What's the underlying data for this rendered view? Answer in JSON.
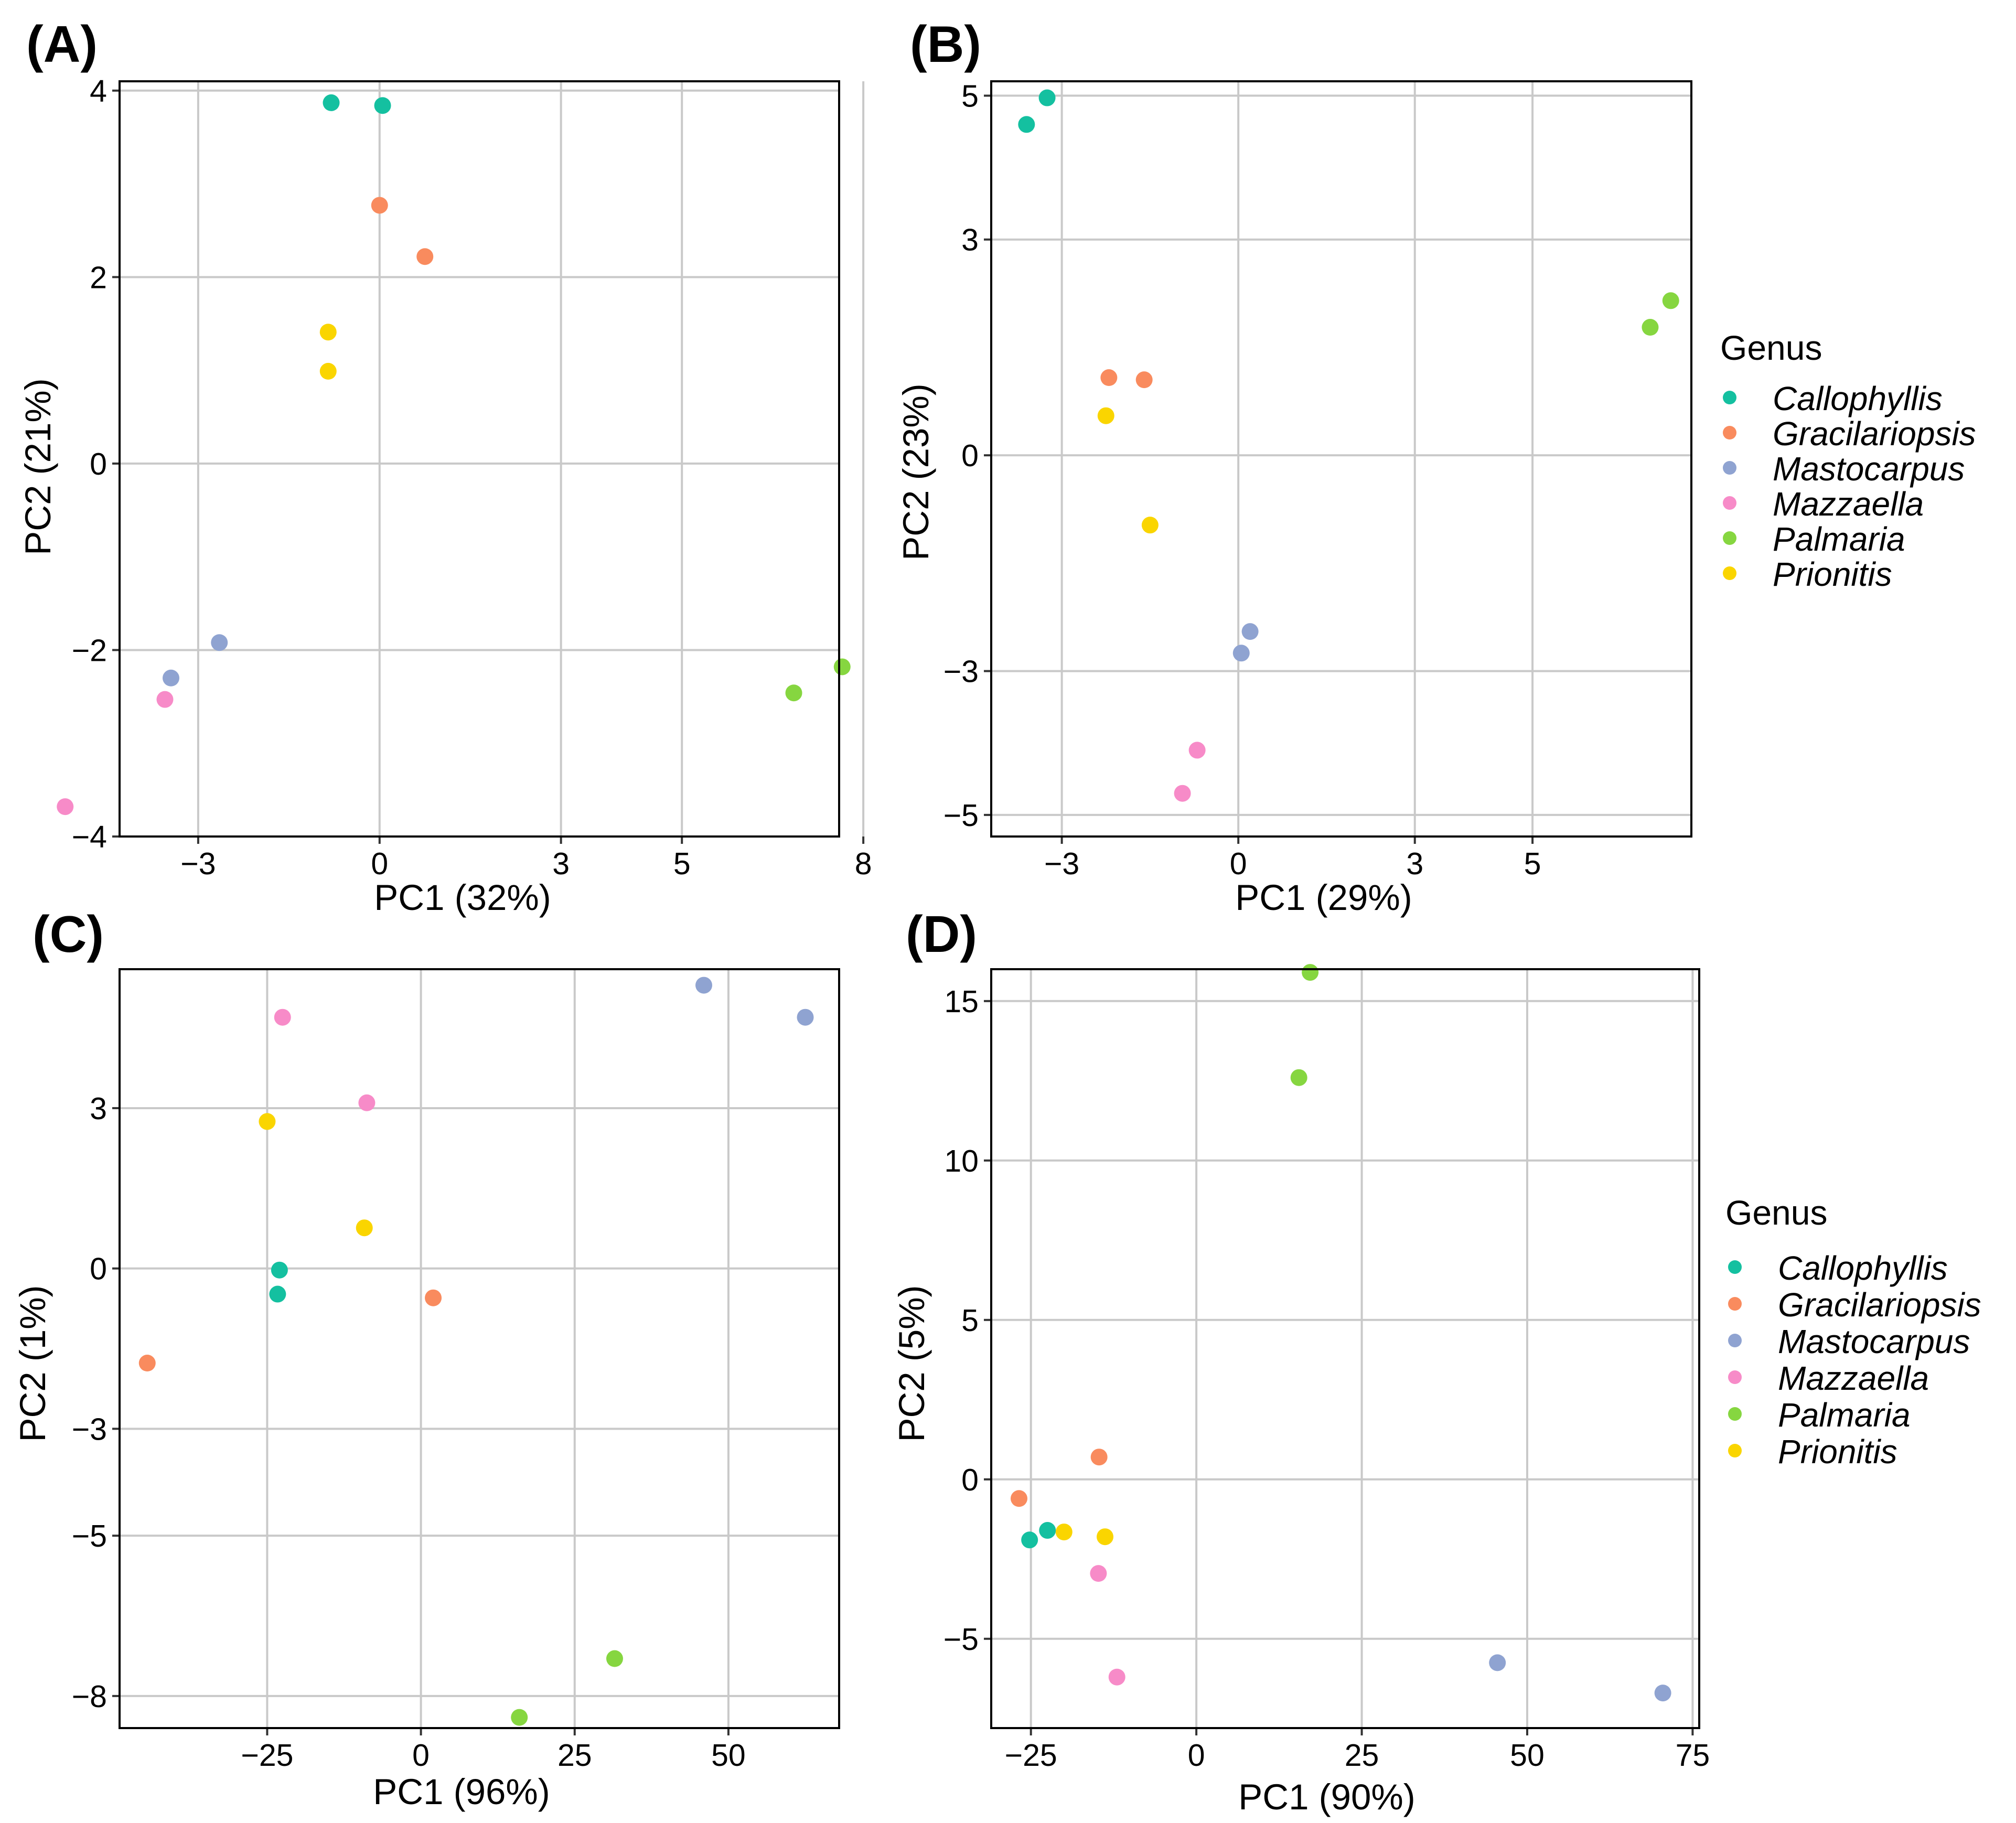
{
  "genus_colors": {
    "Callophyllis": "#14c0a0",
    "Gracilariopsis": "#f98b5e",
    "Mastocarpus": "#8fa3d1",
    "Mazzaella": "#f78bc8",
    "Palmaria": "#86d640",
    "Prionitis": "#fad500"
  },
  "legends": [
    {
      "title": "Genus",
      "items": [
        "Callophyllis",
        "Gracilariopsis",
        "Mastocarpus",
        "Mazzaella",
        "Palmaria",
        "Prionitis"
      ]
    },
    {
      "title": "Genus",
      "items": [
        "Callophyllis",
        "Gracilariopsis",
        "Mastocarpus",
        "Mazzaella",
        "Palmaria",
        "Prionitis"
      ]
    }
  ],
  "chart_data": [
    {
      "type": "scatter",
      "label": "(A)",
      "xlabel": "PC1 (32%)",
      "ylabel": "PC2 (21%)",
      "xlim": [
        -4.3,
        7.6
      ],
      "ylim": [
        -4.0,
        4.1
      ],
      "xticks": [
        -3,
        0,
        3,
        5,
        8
      ],
      "xtick_labels": [
        "−3",
        "0",
        "3",
        "5",
        "8"
      ],
      "yticks": [
        4,
        2,
        0,
        -2,
        -4
      ],
      "ytick_labels": [
        "4",
        "2",
        "0",
        "−2",
        "−4"
      ],
      "grid": true,
      "points": [
        {
          "genus": "Callophyllis",
          "x": -0.8,
          "y": 3.87
        },
        {
          "genus": "Callophyllis",
          "x": 0.05,
          "y": 3.84
        },
        {
          "genus": "Gracilariopsis",
          "x": 0.0,
          "y": 2.77
        },
        {
          "genus": "Gracilariopsis",
          "x": 0.75,
          "y": 2.22
        },
        {
          "genus": "Prionitis",
          "x": -0.85,
          "y": 1.41
        },
        {
          "genus": "Prionitis",
          "x": -0.85,
          "y": 0.99
        },
        {
          "genus": "Mastocarpus",
          "x": -2.65,
          "y": -1.92
        },
        {
          "genus": "Mastocarpus",
          "x": -3.45,
          "y": -2.3
        },
        {
          "genus": "Mazzaella",
          "x": -3.55,
          "y": -2.53
        },
        {
          "genus": "Mazzaella",
          "x": -5.2,
          "y": -3.68
        },
        {
          "genus": "Palmaria",
          "x": 6.85,
          "y": -2.46
        },
        {
          "genus": "Palmaria",
          "x": 7.65,
          "y": -2.18
        }
      ]
    },
    {
      "type": "scatter",
      "label": "(B)",
      "xlabel": "PC1 (29%)",
      "ylabel": "PC2 (23%)",
      "xlim": [
        -4.2,
        7.7
      ],
      "ylim": [
        -5.3,
        5.2
      ],
      "xticks": [
        -3,
        0,
        3,
        5
      ],
      "xtick_labels": [
        "−3",
        "0",
        "3",
        "5"
      ],
      "yticks": [
        5,
        3,
        0,
        -3,
        -5
      ],
      "ytick_labels": [
        "5",
        "3",
        "0",
        "−3",
        "−5"
      ],
      "grid": true,
      "points": [
        {
          "genus": "Callophyllis",
          "x": -3.25,
          "y": 4.97
        },
        {
          "genus": "Callophyllis",
          "x": -3.6,
          "y": 4.6
        },
        {
          "genus": "Palmaria",
          "x": 7.35,
          "y": 2.15
        },
        {
          "genus": "Palmaria",
          "x": 7.0,
          "y": 1.78
        },
        {
          "genus": "Gracilariopsis",
          "x": -2.2,
          "y": 1.08
        },
        {
          "genus": "Gracilariopsis",
          "x": -1.6,
          "y": 1.05
        },
        {
          "genus": "Prionitis",
          "x": -2.25,
          "y": 0.55
        },
        {
          "genus": "Prionitis",
          "x": -1.5,
          "y": -0.97
        },
        {
          "genus": "Mastocarpus",
          "x": 0.2,
          "y": -2.45
        },
        {
          "genus": "Mastocarpus",
          "x": 0.05,
          "y": -2.75
        },
        {
          "genus": "Mazzaella",
          "x": -0.7,
          "y": -4.1
        },
        {
          "genus": "Mazzaella",
          "x": -0.95,
          "y": -4.7
        }
      ]
    },
    {
      "type": "scatter",
      "label": "(C)",
      "xlabel": "PC1 (96%)",
      "ylabel": "PC2 (1%)",
      "xlim": [
        -49,
        68
      ],
      "ylim": [
        -8.6,
        5.6
      ],
      "xticks": [
        -25,
        0,
        25,
        50
      ],
      "xtick_labels": [
        "−25",
        "0",
        "25",
        "50"
      ],
      "yticks": [
        3,
        0,
        -3,
        -5,
        -8
      ],
      "ytick_labels": [
        "3",
        "0",
        "−3",
        "−5",
        "−8"
      ],
      "grid": true,
      "points": [
        {
          "genus": "Mastocarpus",
          "x": 46,
          "y": 5.3
        },
        {
          "genus": "Mastocarpus",
          "x": 62.5,
          "y": 4.7
        },
        {
          "genus": "Mazzaella",
          "x": -22.5,
          "y": 4.7
        },
        {
          "genus": "Mazzaella",
          "x": -8.8,
          "y": 3.1
        },
        {
          "genus": "Prionitis",
          "x": -25,
          "y": 2.75
        },
        {
          "genus": "Prionitis",
          "x": -9.2,
          "y": 0.76
        },
        {
          "genus": "Callophyllis",
          "x": -23,
          "y": -0.03
        },
        {
          "genus": "Callophyllis",
          "x": -23.3,
          "y": -0.48
        },
        {
          "genus": "Gracilariopsis",
          "x": 2,
          "y": -0.55
        },
        {
          "genus": "Gracilariopsis",
          "x": -44.5,
          "y": -1.77
        },
        {
          "genus": "Palmaria",
          "x": 31.5,
          "y": -7.3
        },
        {
          "genus": "Palmaria",
          "x": 16,
          "y": -8.4
        }
      ]
    },
    {
      "type": "scatter",
      "label": "(D)",
      "xlabel": "PC1 (90%)",
      "ylabel": "PC2 (5%)",
      "xlim": [
        -31,
        76
      ],
      "ylim": [
        -7.8,
        16.0
      ],
      "xticks": [
        -25,
        0,
        25,
        50,
        75
      ],
      "xtick_labels": [
        "−25",
        "0",
        "25",
        "50",
        "75"
      ],
      "yticks": [
        15,
        10,
        5,
        0,
        -5
      ],
      "ytick_labels": [
        "15",
        "10",
        "5",
        "0",
        "−5"
      ],
      "grid": true,
      "points": [
        {
          "genus": "Palmaria",
          "x": 17.2,
          "y": 15.9
        },
        {
          "genus": "Palmaria",
          "x": 15.5,
          "y": 12.6
        },
        {
          "genus": "Gracilariopsis",
          "x": -14.7,
          "y": 0.7
        },
        {
          "genus": "Gracilariopsis",
          "x": -26.8,
          "y": -0.6
        },
        {
          "genus": "Callophyllis",
          "x": -22.5,
          "y": -1.6
        },
        {
          "genus": "Callophyllis",
          "x": -25.2,
          "y": -1.9
        },
        {
          "genus": "Prionitis",
          "x": -20,
          "y": -1.65
        },
        {
          "genus": "Prionitis",
          "x": -13.8,
          "y": -1.8
        },
        {
          "genus": "Mazzaella",
          "x": -14.8,
          "y": -2.95
        },
        {
          "genus": "Mazzaella",
          "x": -12,
          "y": -6.2
        },
        {
          "genus": "Mastocarpus",
          "x": 45.5,
          "y": -5.75
        },
        {
          "genus": "Mastocarpus",
          "x": 70.5,
          "y": -6.7
        }
      ]
    }
  ]
}
